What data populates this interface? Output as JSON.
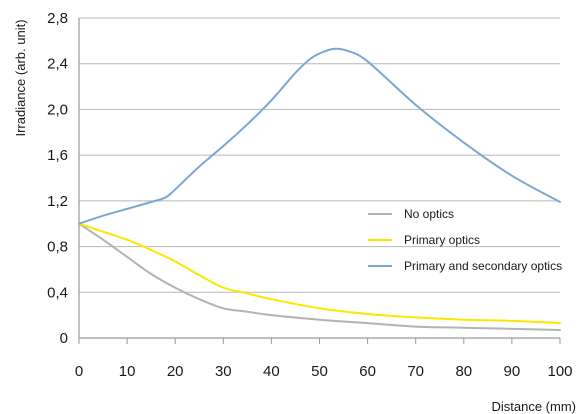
{
  "chart_data": {
    "type": "line",
    "title": "",
    "xlabel": "Distance (mm)",
    "ylabel": "Irradiance (arb. unit)",
    "xlim": [
      0,
      100
    ],
    "ylim": [
      0,
      2.8
    ],
    "x_ticks": [
      0,
      10,
      20,
      30,
      40,
      50,
      60,
      70,
      80,
      90,
      100
    ],
    "y_ticks": [
      0,
      0.4,
      0.8,
      1.2,
      1.6,
      2.0,
      2.4,
      2.8
    ],
    "x_tick_labels": [
      "0",
      "10",
      "20",
      "30",
      "40",
      "50",
      "60",
      "70",
      "80",
      "90",
      "100"
    ],
    "y_tick_labels": [
      "0",
      "0,4",
      "0,8",
      "1,2",
      "1,6",
      "2,0",
      "2,4",
      "2,8"
    ],
    "grid": "horizontal",
    "legend": "center-right",
    "series": [
      {
        "name": "No optics",
        "color": "#b3b3b3",
        "x": [
          0,
          5,
          10,
          15,
          20,
          25,
          30,
          35,
          40,
          50,
          60,
          70,
          80,
          90,
          100
        ],
        "y": [
          1.0,
          0.86,
          0.71,
          0.56,
          0.44,
          0.34,
          0.26,
          0.23,
          0.2,
          0.16,
          0.13,
          0.1,
          0.09,
          0.08,
          0.07
        ]
      },
      {
        "name": "Primary optics",
        "color": "#ffe600",
        "x": [
          0,
          5,
          10,
          15,
          20,
          25,
          30,
          35,
          40,
          50,
          60,
          70,
          80,
          90,
          100
        ],
        "y": [
          1.0,
          0.93,
          0.86,
          0.77,
          0.67,
          0.55,
          0.44,
          0.39,
          0.34,
          0.26,
          0.21,
          0.18,
          0.16,
          0.15,
          0.13
        ]
      },
      {
        "name": "Primary and secondary optics",
        "color": "#7ba7d6",
        "x": [
          0,
          5,
          10,
          15,
          18,
          20,
          25,
          30,
          35,
          40,
          45,
          48,
          50,
          53,
          56,
          60,
          70,
          80,
          90,
          100
        ],
        "y": [
          1.0,
          1.07,
          1.13,
          1.19,
          1.23,
          1.3,
          1.5,
          1.68,
          1.87,
          2.08,
          2.32,
          2.44,
          2.49,
          2.53,
          2.51,
          2.42,
          2.04,
          1.71,
          1.42,
          1.19
        ]
      }
    ]
  }
}
